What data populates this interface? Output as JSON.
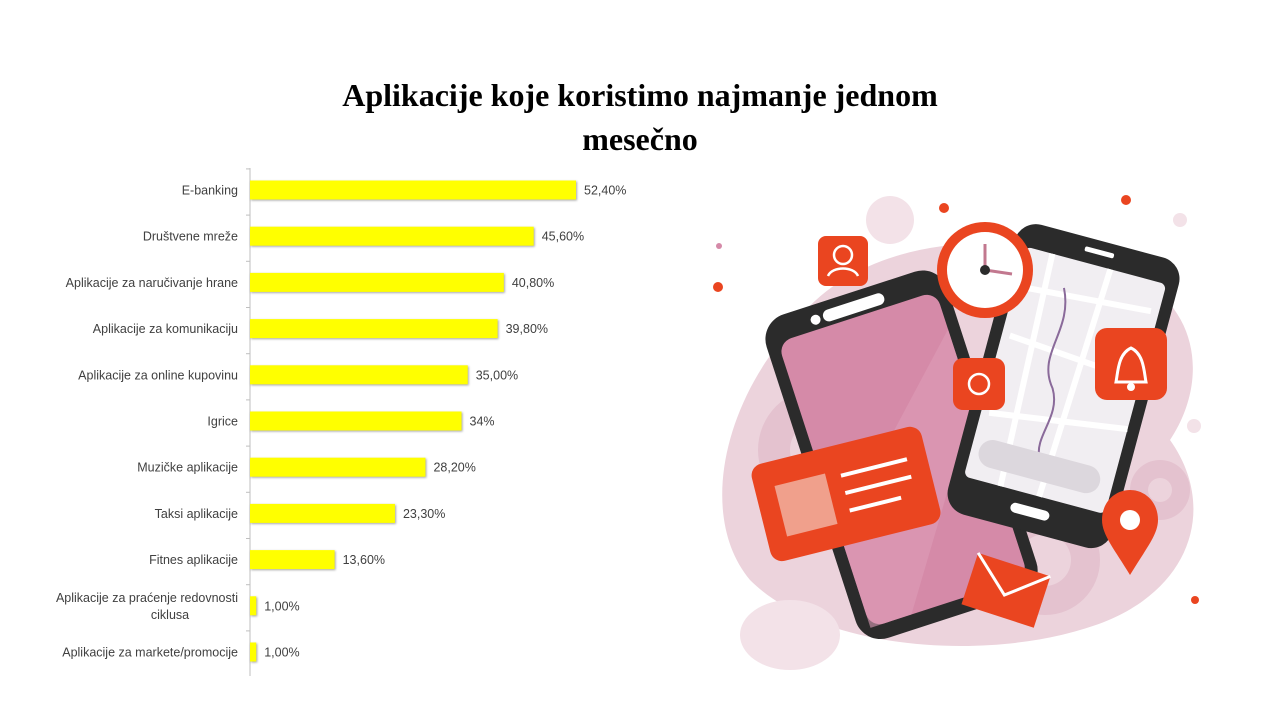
{
  "title_lines": [
    "Aplikacije koje koristimo najmanje jednom",
    "mesečno"
  ],
  "colors": {
    "bar": "#ffff00",
    "accent": "#ea4520",
    "blob": "#ecd3dc",
    "phone": "#2b2b2b",
    "screen_pink": "#d58aa8"
  },
  "chart_data": {
    "type": "bar",
    "orientation": "horizontal",
    "title": "Aplikacije koje koristimo najmanje jednom mesečno",
    "xlim": [
      0,
      100
    ],
    "grid": false,
    "legend": "none",
    "categories": [
      "E-banking",
      "Društvene mreže",
      "Aplikacije za naručivanje hrane",
      "Aplikacije za komunikaciju",
      "Aplikacije za online kupovinu",
      "Igrice",
      "Muzičke aplikacije",
      "Taksi aplikacije",
      "Fitnes aplikacije",
      "Aplikacije za praćenje redovnosti ciklusa",
      "Aplikacije za markete/promocije"
    ],
    "category_lines": [
      [
        "E-banking"
      ],
      [
        "Društvene mreže"
      ],
      [
        "Aplikacije za naručivanje hrane"
      ],
      [
        "Aplikacije za komunikaciju"
      ],
      [
        "Aplikacije za online kupovinu"
      ],
      [
        "Igrice"
      ],
      [
        "Muzičke aplikacije"
      ],
      [
        "Taksi aplikacije"
      ],
      [
        "Fitnes aplikacije"
      ],
      [
        "Aplikacije za praćenje redovnosti",
        "ciklusa"
      ],
      [
        "Aplikacije za markete/promocije"
      ]
    ],
    "values": [
      52.4,
      45.6,
      40.8,
      39.8,
      35.0,
      34,
      28.2,
      23.3,
      13.6,
      1.0,
      1.0
    ],
    "data_labels": [
      "52,40%",
      "45,60%",
      "40,80%",
      "39,80%",
      "35,00%",
      "34%",
      "28,20%",
      "23,30%",
      "13,60%",
      "1,00%",
      "1,00%"
    ]
  },
  "illustration": {
    "icons": [
      "user-icon",
      "clock-icon",
      "bell-icon",
      "location-pin-icon",
      "envelope-icon",
      "id-card-icon",
      "gear-icon"
    ]
  }
}
